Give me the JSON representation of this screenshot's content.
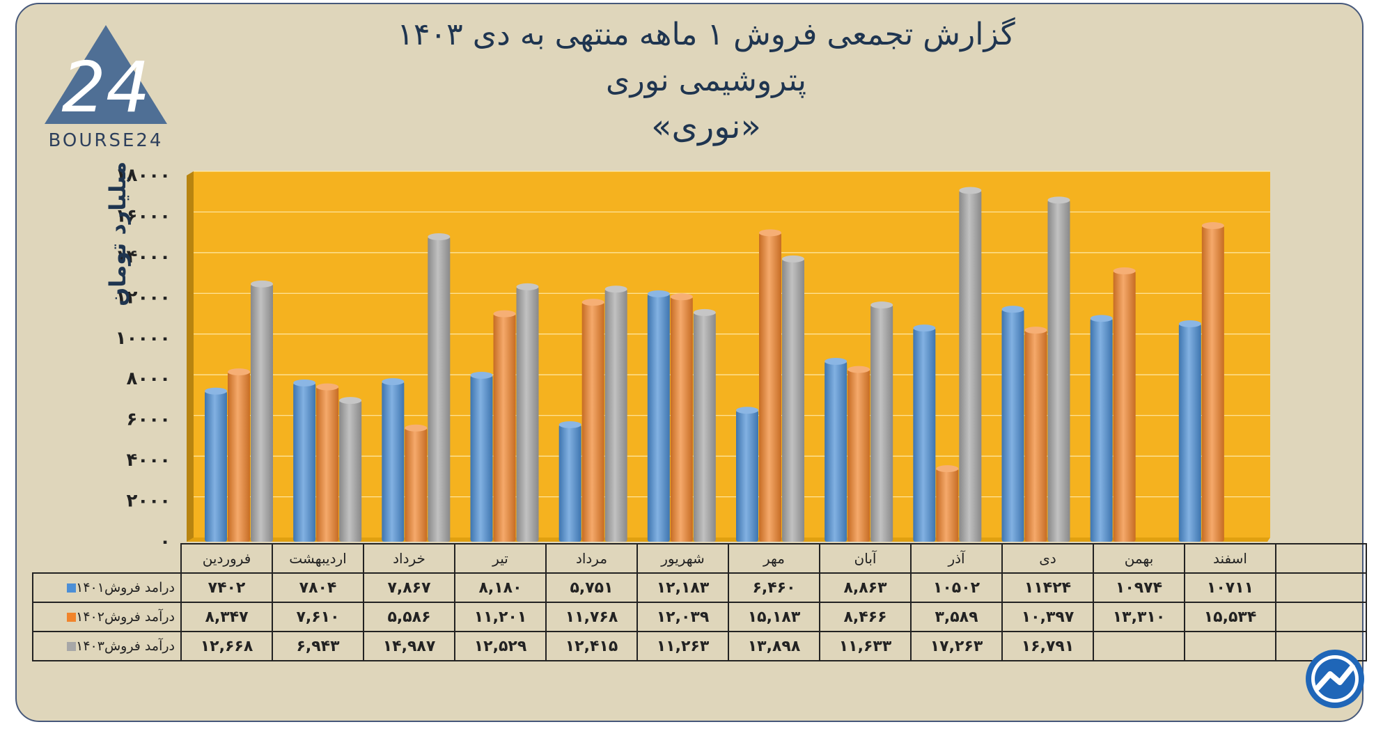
{
  "title": {
    "line1": "گزارش تجمعی فروش ۱ ماهه منتهی به دی ۱۴۰۳",
    "line2": "پتروشیمی نوری",
    "line3": "«نوری»"
  },
  "logo": {
    "text": "BOURSE24",
    "mark": "24"
  },
  "colors": {
    "background": "#dfd6bb",
    "plot_bg": "#f5b21f",
    "series1": "#4c8fd6",
    "series2": "#f1842b",
    "series3": "#a7a7a7",
    "text": "#1f3550"
  },
  "chart_data": {
    "type": "bar",
    "title": "",
    "ylabel": "میلیارد تومان",
    "ylim": [
      0,
      18000
    ],
    "yticks": [
      "۰",
      "۲۰۰۰",
      "۴۰۰۰",
      "۶۰۰۰",
      "۸۰۰۰",
      "۱۰۰۰۰",
      "۱۲۰۰۰",
      "۱۴۰۰۰",
      "۱۶۰۰۰",
      "۱۸۰۰۰"
    ],
    "ytick_values": [
      0,
      2000,
      4000,
      6000,
      8000,
      10000,
      12000,
      14000,
      16000,
      18000
    ],
    "categories": [
      "فروردین",
      "اردیبهشت",
      "خرداد",
      "تیر",
      "مرداد",
      "شهریور",
      "مهر",
      "آبان",
      "آذر",
      "دی",
      "بهمن",
      "اسفند"
    ],
    "series": [
      {
        "name": "درامد فروش۱۴۰۱",
        "color": "#4c8fd6",
        "values": [
          7402,
          7804,
          7867,
          8180,
          5751,
          12183,
          6460,
          8863,
          10502,
          11424,
          10974,
          10711
        ]
      },
      {
        "name": "درآمد فروش۱۴۰۲",
        "color": "#f1842b",
        "values": [
          8347,
          7610,
          5586,
          11201,
          11768,
          12039,
          15183,
          8466,
          3589,
          10397,
          13310,
          15534
        ]
      },
      {
        "name": "درآمد فروش۱۴۰۳",
        "color": "#a7a7a7",
        "values": [
          12668,
          6943,
          14987,
          12529,
          12415,
          11263,
          13898,
          11633,
          17263,
          16791,
          null,
          null
        ]
      }
    ],
    "grid": true,
    "legend": "table-left"
  },
  "table": {
    "rows": [
      {
        "label": "درامد فروش۱۴۰۱",
        "color": "#4c8fd6",
        "cells": [
          "۷۴۰۲",
          "۷۸۰۴",
          "۷,۸۶۷",
          "۸,۱۸۰",
          "۵,۷۵۱",
          "۱۲,۱۸۳",
          "۶,۴۶۰",
          "۸,۸۶۳",
          "۱۰۵۰۲",
          "۱۱۴۲۴",
          "۱۰۹۷۴",
          "۱۰۷۱۱"
        ]
      },
      {
        "label": "درآمد فروش۱۴۰۲",
        "color": "#f1842b",
        "cells": [
          "۸,۳۴۷",
          "۷,۶۱۰",
          "۵,۵۸۶",
          "۱۱,۲۰۱",
          "۱۱,۷۶۸",
          "۱۲,۰۳۹",
          "۱۵,۱۸۳",
          "۸,۴۶۶",
          "۳,۵۸۹",
          "۱۰,۳۹۷",
          "۱۳,۳۱۰",
          "۱۵,۵۳۴"
        ]
      },
      {
        "label": "درآمد فروش۱۴۰۳",
        "color": "#a7a7a7",
        "cells": [
          "۱۲,۶۶۸",
          "۶,۹۴۳",
          "۱۴,۹۸۷",
          "۱۲,۵۲۹",
          "۱۲,۴۱۵",
          "۱۱,۲۶۳",
          "۱۳,۸۹۸",
          "۱۱,۶۳۳",
          "۱۷,۲۶۳",
          "۱۶,۷۹۱",
          "",
          ""
        ]
      }
    ]
  }
}
